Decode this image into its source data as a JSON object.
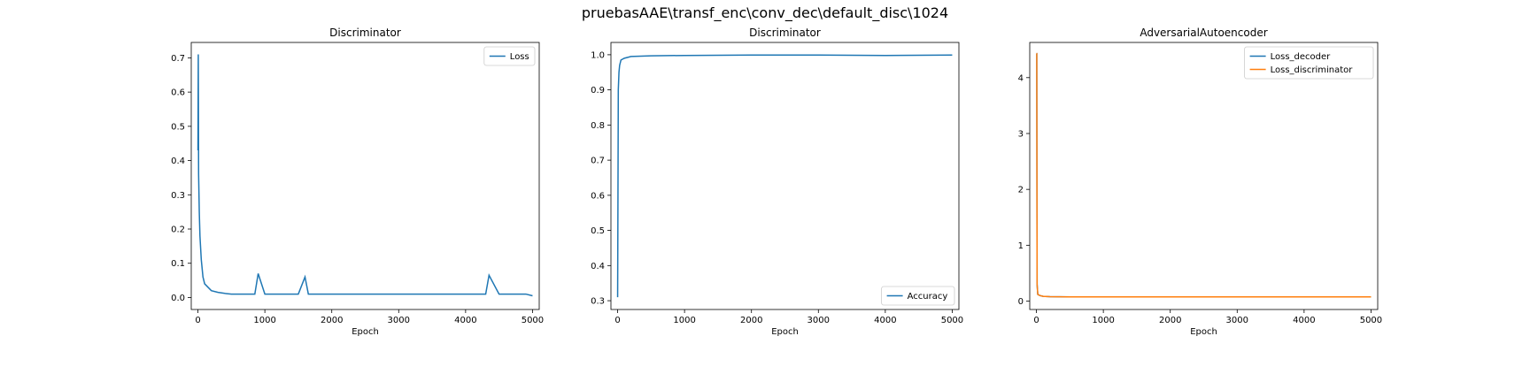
{
  "figure": {
    "suptitle": "pruebasAAE\\transf_enc\\conv_dec\\default_disc\\1024"
  },
  "chart_data": [
    {
      "type": "line",
      "title": "Discriminator",
      "xlabel": "Epoch",
      "ylabel": "",
      "xlim": [
        -100,
        5100
      ],
      "ylim": [
        -0.035,
        0.745
      ],
      "xticks": [
        0,
        1000,
        2000,
        3000,
        4000,
        5000
      ],
      "yticks": [
        0.0,
        0.1,
        0.2,
        0.3,
        0.4,
        0.5,
        0.6,
        0.7
      ],
      "legend_position": "top-right",
      "series": [
        {
          "name": "Loss",
          "color": "#1f77b4",
          "x": [
            0,
            5,
            10,
            20,
            30,
            50,
            75,
            100,
            150,
            200,
            300,
            400,
            500,
            700,
            850,
            900,
            1000,
            1200,
            1500,
            1600,
            1650,
            1700,
            2000,
            2500,
            3000,
            3500,
            4000,
            4300,
            4350,
            4500,
            4900,
            5000
          ],
          "values": [
            0.43,
            0.71,
            0.36,
            0.25,
            0.18,
            0.11,
            0.06,
            0.04,
            0.03,
            0.02,
            0.015,
            0.012,
            0.01,
            0.01,
            0.01,
            0.07,
            0.01,
            0.01,
            0.01,
            0.06,
            0.01,
            0.01,
            0.01,
            0.01,
            0.01,
            0.01,
            0.01,
            0.01,
            0.065,
            0.01,
            0.01,
            0.005
          ]
        }
      ]
    },
    {
      "type": "line",
      "title": "Discriminator",
      "xlabel": "Epoch",
      "ylabel": "",
      "xlim": [
        -100,
        5100
      ],
      "ylim": [
        0.275,
        1.035
      ],
      "xticks": [
        0,
        1000,
        2000,
        3000,
        4000,
        5000
      ],
      "yticks": [
        0.3,
        0.4,
        0.5,
        0.6,
        0.7,
        0.8,
        0.9,
        1.0
      ],
      "legend_position": "bottom-right",
      "series": [
        {
          "name": "Accuracy",
          "color": "#1f77b4",
          "x": [
            0,
            5,
            10,
            20,
            30,
            50,
            100,
            200,
            500,
            1000,
            2000,
            3000,
            4000,
            5000
          ],
          "values": [
            0.31,
            0.6,
            0.9,
            0.95,
            0.97,
            0.985,
            0.99,
            0.995,
            0.997,
            0.998,
            0.999,
            0.999,
            0.998,
            0.999
          ]
        }
      ]
    },
    {
      "type": "line",
      "title": "AdversarialAutoencoder",
      "xlabel": "Epoch",
      "ylabel": "",
      "xlim": [
        -100,
        5100
      ],
      "ylim": [
        -0.15,
        4.63
      ],
      "xticks": [
        0,
        1000,
        2000,
        3000,
        4000,
        5000
      ],
      "yticks": [
        0,
        1,
        2,
        3,
        4
      ],
      "legend_position": "top-right",
      "series": [
        {
          "name": "Loss_decoder",
          "color": "#1f77b4",
          "x": [
            0,
            5,
            10,
            20,
            50,
            100,
            200,
            500,
            1000,
            2000,
            3000,
            4000,
            5000
          ],
          "values": [
            4.43,
            4.43,
            0.3,
            0.12,
            0.1,
            0.085,
            0.08,
            0.075,
            0.075,
            0.075,
            0.075,
            0.075,
            0.075
          ]
        },
        {
          "name": "Loss_discriminator",
          "color": "#ff7f0e",
          "x": [
            0,
            5,
            10,
            20,
            50,
            100,
            200,
            500,
            1000,
            2000,
            3000,
            4000,
            5000
          ],
          "values": [
            4.43,
            4.43,
            0.3,
            0.12,
            0.1,
            0.085,
            0.08,
            0.075,
            0.075,
            0.075,
            0.075,
            0.075,
            0.075
          ]
        }
      ]
    }
  ]
}
